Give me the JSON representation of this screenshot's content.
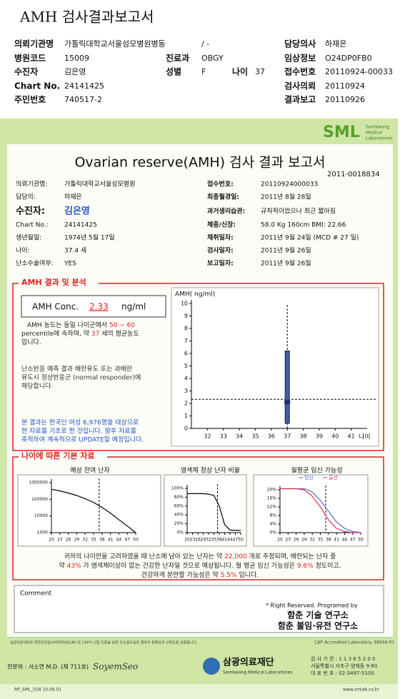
{
  "header": {
    "title": "AMH 검사결과보고서"
  },
  "info": [
    {
      "label": "의뢰기관명",
      "value": "가톨릭대학교서울성모병원병동"
    },
    {
      "label": "담당의사",
      "value": "하재은"
    },
    {
      "label": "병원코드",
      "value": "15009"
    },
    {
      "label": "진료과",
      "value": "OBGY"
    },
    {
      "label": "임상정보",
      "value": "O24DP0FB0"
    },
    {
      "label": "수진자",
      "value": "김은영"
    },
    {
      "label": "성별",
      "value": "F"
    },
    {
      "label": "나이",
      "value": "37"
    },
    {
      "label": "접수번호",
      "value": "20110924-00033"
    },
    {
      "label": "Chart No.",
      "value": "24141425"
    },
    {
      "label": "검사의뢰",
      "value": "20110924"
    },
    {
      "label": "주민번호",
      "value": "740517-2"
    },
    {
      "label": "결과보고",
      "value": "20110926"
    }
  ],
  "ward": "/ -",
  "logo": {
    "name": "SML",
    "sub": [
      "Samkwang",
      "Medical",
      "Laboratories"
    ]
  },
  "report": {
    "title": "Ovarian reserve(AMH) 검사 결과 보고서",
    "number": "2011-0018834",
    "left": [
      {
        "label": "의뢰기관명:",
        "value": "가톨릭대학교서울성모병원"
      },
      {
        "label": "담당의:",
        "value": "하재은"
      },
      {
        "label": "수진자:",
        "value": "김은영"
      },
      {
        "label": "Chart No.:",
        "value": "24141425"
      },
      {
        "label": "생년월일:",
        "value": "1974년 5월 17일"
      },
      {
        "label": "나이:",
        "value": "37.4 세"
      },
      {
        "label": "난소수술여부:",
        "value": "YES"
      }
    ],
    "right": [
      {
        "label": "접수번호:",
        "value": "20110924000033"
      },
      {
        "label": "최종월경일:",
        "value": "2011년 8월 28일"
      },
      {
        "label": "과거생리습관:",
        "value": "규칙적이었으나 최근 짧아짐"
      },
      {
        "label": "체중/신장:",
        "value": "58.0 Kg    160cm    BMI: 22.66"
      },
      {
        "label": "채취일자:",
        "value": "2011년 9월 24일   (MCD # 27 일)"
      },
      {
        "label": "검사일자:",
        "value": "2011년 9월 26일"
      },
      {
        "label": "보고일자:",
        "value": "2011년 9월 26일"
      }
    ]
  },
  "section1": "AMH 결과 및 분석",
  "amh": {
    "label": "AMH Conc.",
    "value": 2.33,
    "unit": "ng/ml"
  },
  "note1": {
    "a": "AMH 농도는 동일 나이군에서",
    "range": "50 ~ 60",
    "b": "percentile에 속하며, 약",
    "age": "37",
    "c": "세의 평균농도",
    "d": "입니다."
  },
  "note2": [
    "난소반응 예측 결과 배란유도 또는 과배란",
    "유도시 정상반응군 (normal responder)에",
    "해당합니다."
  ],
  "note3": [
    "본 결과는 한국인 여성 6,976명을 대상으로",
    "한 자료를 기초로 한 것입니다. 향후 자료를",
    "축적하여 계속적으로 UPDATE할 예정입니다."
  ],
  "section2": "나이에 따른 기본 자료",
  "chart_data": [
    {
      "type": "box",
      "y_label": "AMH( ng/ml)",
      "x_label": "나이",
      "xlim": [
        31,
        42
      ],
      "xticks": [
        32,
        33,
        34,
        35,
        36,
        37,
        38,
        39,
        40,
        41
      ],
      "ylim": [
        0,
        10
      ],
      "yticks": [
        0,
        1,
        2,
        3,
        4,
        5,
        6,
        7,
        8,
        9,
        10
      ],
      "color": "#3a5fa8",
      "box": {
        "x": 37,
        "low": 0.4,
        "high": 6.2,
        "median": 2.1,
        "whisker_low": 0,
        "whisker_high": 10
      }
    },
    {
      "type": "line",
      "title": "예상 잔여 난자",
      "log": true,
      "x": [
        20,
        23,
        26,
        29,
        32,
        35,
        38,
        41,
        44,
        47,
        50
      ],
      "xlim": [
        20,
        50
      ],
      "xticks": [
        20,
        23,
        26,
        29,
        32,
        35,
        38,
        41,
        44,
        47,
        50
      ],
      "ylim": [
        1000,
        1000000
      ],
      "yticks": [
        1000,
        10000,
        100000,
        1000000
      ],
      "values": [
        400000,
        320000,
        240000,
        170000,
        110000,
        65000,
        33000,
        15000,
        6000,
        2500,
        1000
      ],
      "color": "#000000",
      "marker": 37
    },
    {
      "type": "line",
      "title": "염색체 정상 난자 비율",
      "x": [
        20,
        23,
        26,
        29,
        32,
        35,
        38,
        41,
        44,
        47,
        50
      ],
      "xlim": [
        20,
        50
      ],
      "xticks": [
        20,
        23,
        26,
        29,
        32,
        35,
        38,
        41,
        44,
        47,
        50
      ],
      "ylim": [
        0,
        100
      ],
      "yticks": [
        {
          "value": 0,
          "label": "0%"
        },
        {
          "value": 20,
          "label": "20%"
        },
        {
          "value": 40,
          "label": "40%"
        },
        {
          "value": 60,
          "label": "60%"
        },
        {
          "value": 80,
          "label": "80%"
        },
        {
          "value": 100,
          "label": "100%"
        }
      ],
      "values": [
        88,
        88,
        88,
        88,
        87,
        84,
        60,
        18,
        6,
        5,
        5
      ],
      "color": "#000000",
      "marker": 37
    },
    {
      "type": "line",
      "title": "월평균 임신 가능성",
      "x": [
        20,
        23,
        26,
        29,
        32,
        35,
        38,
        41,
        44,
        47,
        50
      ],
      "xlim": [
        20,
        50
      ],
      "xticks": [
        20,
        23,
        26,
        29,
        32,
        35,
        38,
        41,
        44,
        47,
        50
      ],
      "ylim": [
        0,
        20
      ],
      "yticks": [
        {
          "value": 0,
          "label": "0%"
        },
        {
          "value": 4,
          "label": "4%"
        },
        {
          "value": 8,
          "label": "8%"
        },
        {
          "value": 12,
          "label": "12%"
        },
        {
          "value": 16,
          "label": "16%"
        },
        {
          "value": 20,
          "label": "20%"
        }
      ],
      "series": [
        {
          "name": "임신",
          "color": "#5566dd",
          "values": [
            20.5,
            20.5,
            20.5,
            20.5,
            19,
            15,
            10,
            5,
            2,
            0.5,
            0
          ]
        },
        {
          "name": "출산",
          "color": "#dd3355",
          "values": [
            20.5,
            20.5,
            20.5,
            20,
            17,
            12,
            6,
            2,
            0.5,
            0,
            0
          ]
        }
      ],
      "marker": 37
    }
  ],
  "summary": {
    "l1a": "귀하의 나이만을 고려하였을 때 난소에 남아 있는 난자는 약",
    "oocytes": "22,000",
    "l1b": "개로 추정되며, 배란되는 난자 중",
    "l2a": "약",
    "chrom": "43%",
    "l2b": "가 염색체이상이 없는 건강한 난자일 것으로 예상됩니다. 월 평균 임신 가능성은",
    "preg": "9.6%",
    "l2c": "정도이고,",
    "l3a": "건강하게 분만할 가능성은 약",
    "birth": "5.5%",
    "l3b": "입니다."
  },
  "comment": "Comment",
  "rights": {
    "note": "* Right Reserved. Programed by",
    "lab1": "함춘 기술 연구소",
    "lab2": "함춘 불임·유전 연구소"
  },
  "footer": {
    "cert": "삼광의료재단은 대한진단검사의학회(KSLM) 및 CAP의 신임 인증을 받은 우수검사실로 결과의 정확성과 신뢰도를 보증합니다.",
    "cap": "CAP Accredited Laboratory. 69944-01",
    "doctor": "전문의 : 서소연 M.D. (제 711호)",
    "signature": "SoyemSeo",
    "org": "삼광의료재단",
    "org_en": "Samkwang Medical Laboratories",
    "addr": [
      "검 사 기 관 : 1 1 3 6 5 2 0 0",
      "서울특별시 서초구 양재동 9-60",
      "대 표 번 호 : 02-3497-5100"
    ],
    "code": "RP_SML_028  10.06.01",
    "web": "www.smlab.co.kr"
  }
}
